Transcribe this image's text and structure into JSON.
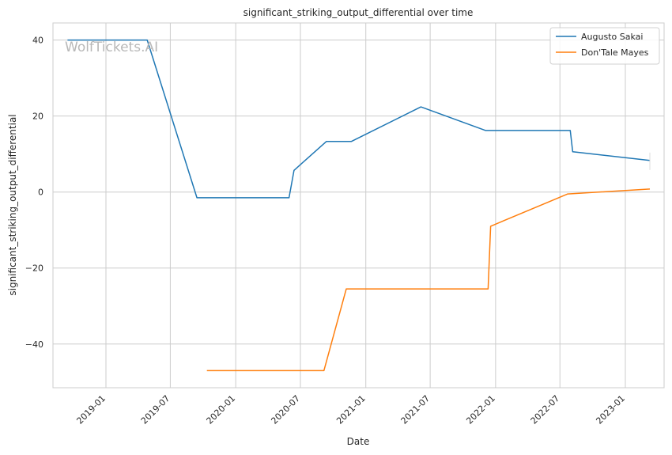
{
  "watermark": "WolfTickets.AI",
  "chart_data": {
    "type": "line",
    "title": "significant_striking_output_differential over time",
    "xlabel": "Date",
    "ylabel": "significant_striking_output_differential",
    "x_ticks": [
      "2019-01",
      "2019-07",
      "2020-01",
      "2020-07",
      "2021-01",
      "2021-07",
      "2022-01",
      "2022-07",
      "2023-01"
    ],
    "y_ticks": [
      40,
      20,
      0,
      -20,
      -40
    ],
    "y_tick_labels": [
      "40",
      "20",
      "0",
      "−20",
      "−40"
    ],
    "xlim": [
      "2018-08-05",
      "2023-04-20"
    ],
    "ylim": [
      -51.5,
      44.5
    ],
    "grid": true,
    "legend_position": "top-right",
    "colors": {
      "Augusto Sakai": "#1f77b4",
      "Don'Tale Mayes": "#ff7f0e"
    },
    "series": [
      {
        "name": "Augusto Sakai",
        "color": "#1f77b4",
        "points": [
          [
            "2018-09-15",
            40.0
          ],
          [
            "2019-04-27",
            40.0
          ],
          [
            "2019-09-14",
            -1.5
          ],
          [
            "2020-05-30",
            -1.5
          ],
          [
            "2020-06-13",
            5.7
          ],
          [
            "2020-09-12",
            13.3
          ],
          [
            "2020-11-21",
            13.3
          ],
          [
            "2021-06-05",
            22.4
          ],
          [
            "2021-12-04",
            16.2
          ],
          [
            "2022-07-30",
            16.2
          ],
          [
            "2022-08-06",
            10.6
          ],
          [
            "2023-03-11",
            8.3
          ]
        ]
      },
      {
        "name": "Don'Tale Mayes",
        "color": "#ff7f0e",
        "points": [
          [
            "2019-10-12",
            -47.0
          ],
          [
            "2020-09-05",
            -47.0
          ],
          [
            "2020-11-07",
            -25.5
          ],
          [
            "2021-12-11",
            -25.5
          ],
          [
            "2021-12-18",
            -9.0
          ],
          [
            "2022-07-23",
            -0.5
          ],
          [
            "2023-03-11",
            0.8
          ]
        ]
      }
    ]
  }
}
